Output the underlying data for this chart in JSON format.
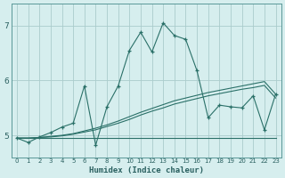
{
  "xlabel": "Humidex (Indice chaleur)",
  "background_color": "#d6eeee",
  "grid_color": "#aacccc",
  "line_color": "#2a7068",
  "xlim": [
    -0.5,
    23.5
  ],
  "ylim": [
    4.6,
    7.4
  ],
  "yticks": [
    5,
    6,
    7
  ],
  "x": [
    0,
    1,
    2,
    3,
    4,
    5,
    6,
    7,
    8,
    9,
    10,
    11,
    12,
    13,
    14,
    15,
    16,
    17,
    18,
    19,
    20,
    21,
    22,
    23
  ],
  "y_main": [
    4.95,
    4.87,
    4.97,
    5.05,
    5.15,
    5.22,
    5.9,
    4.82,
    5.52,
    5.9,
    6.55,
    6.88,
    6.52,
    7.05,
    6.82,
    6.75,
    6.18,
    5.32,
    5.55,
    5.52,
    5.5,
    5.72,
    5.1,
    5.75
  ],
  "y_trend_up": [
    4.95,
    4.95,
    4.96,
    4.98,
    5.0,
    5.03,
    5.08,
    5.13,
    5.19,
    5.26,
    5.34,
    5.42,
    5.49,
    5.56,
    5.63,
    5.68,
    5.73,
    5.78,
    5.82,
    5.86,
    5.9,
    5.94,
    5.98,
    5.75
  ],
  "y_trend_mid": [
    4.95,
    4.95,
    4.96,
    4.97,
    4.99,
    5.02,
    5.06,
    5.1,
    5.16,
    5.22,
    5.29,
    5.37,
    5.44,
    5.5,
    5.57,
    5.62,
    5.67,
    5.72,
    5.76,
    5.8,
    5.84,
    5.87,
    5.91,
    5.68
  ],
  "y_trend_low": [
    4.95,
    4.95,
    4.95,
    4.95,
    4.95,
    4.95,
    4.95,
    4.95,
    4.95,
    4.95,
    4.95,
    4.95,
    4.95,
    4.95,
    4.95,
    4.95,
    4.95,
    4.95,
    4.95,
    4.95,
    4.95,
    4.95,
    4.95,
    4.95
  ]
}
